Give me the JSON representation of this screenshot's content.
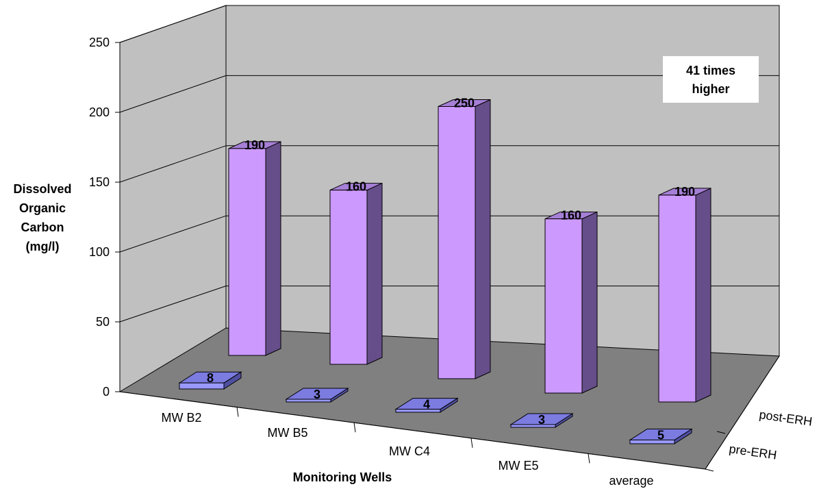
{
  "chart_data": {
    "type": "bar",
    "three_d": true,
    "categories": [
      "MW B2",
      "MW B5",
      "MW C4",
      "MW E5",
      "average"
    ],
    "series": [
      {
        "name": "pre-ERH",
        "values": [
          8,
          3,
          4,
          3,
          5
        ],
        "color": "#7b7be0"
      },
      {
        "name": "post-ERH",
        "values": [
          190,
          160,
          250,
          160,
          190
        ],
        "color": "#cc99ff"
      }
    ],
    "xlabel": "Monitoring Wells",
    "ylabel": [
      "Dissolved",
      "Organic",
      "Carbon",
      "(mg/l)"
    ],
    "ylim": [
      0,
      250
    ],
    "yticks": [
      "0",
      "50",
      "100",
      "150",
      "200",
      "250"
    ],
    "annotation": [
      "41 times",
      "higher"
    ],
    "grid": true,
    "colors": {
      "back_wall": "#c0c0c0",
      "floor": "#808080",
      "post_side": "#664e8a",
      "pre_side": "#4f4fa0"
    }
  }
}
